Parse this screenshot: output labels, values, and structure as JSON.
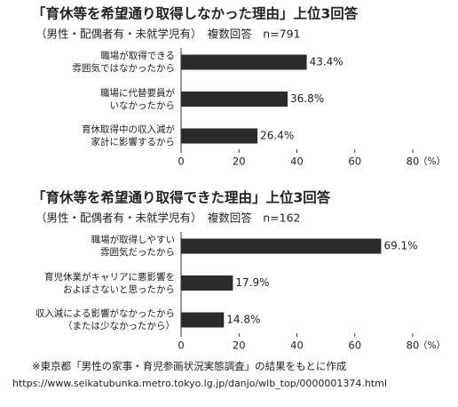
{
  "chart_data": [
    {
      "type": "hbar",
      "title": "「育休等を希望通り取得しなかった理由」上位3回答",
      "subtitle": "（男性・配偶者有・未就学児有）　複数回答　n=791",
      "categories": [
        "職場が取得できる\n雰囲気ではなかったから",
        "職場に代替要員が\nいなかったから",
        "育休取得中の収入減が\n家計に影響するから"
      ],
      "values": [
        43.4,
        36.8,
        26.4
      ],
      "value_labels": [
        "43.4%",
        "36.8%",
        "26.4%"
      ],
      "color": "#2b2b2b",
      "xlim": [
        0,
        80
      ],
      "xticks": [
        0,
        20,
        40,
        60,
        80
      ],
      "x_unit": "（%）"
    },
    {
      "type": "hbar",
      "title": "「育休等を希望通り取得できた理由」上位3回答",
      "subtitle": "（男性・配偶者有・未就学児有）　複数回答　n=162",
      "categories": [
        "職場が取得しやすい\n雰囲気だったから",
        "育児休業がキャリアに悪影響を\nおよぼさないと思ったから",
        "収入減による影響がなかったから\n（または少なかったから）"
      ],
      "values": [
        69.1,
        17.9,
        14.8
      ],
      "value_labels": [
        "69.1%",
        "17.9%",
        "14.8%"
      ],
      "color": "#2b2b2b",
      "xlim": [
        0,
        80
      ],
      "xticks": [
        0,
        20,
        40,
        60,
        80
      ],
      "x_unit": "（%）"
    }
  ],
  "footer": {
    "note": "※東京都「男性の家事・育児参画状況実態調査」の結果をもとに作成",
    "url": "https://www.seikatubunka.metro.tokyo.lg.jp/danjo/wlb_top/0000001374.html"
  }
}
